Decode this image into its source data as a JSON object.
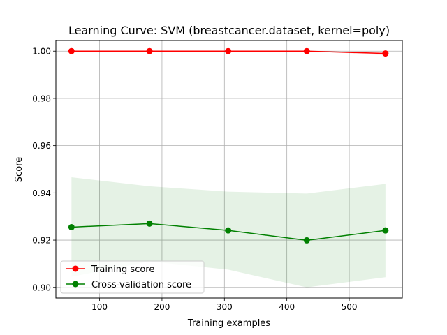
{
  "chart_data": {
    "type": "line",
    "title": "Learning Curve: SVM (breastcancer.dataset, kernel=poly)",
    "xlabel": "Training examples",
    "ylabel": "Score",
    "xlim": [
      30,
      585
    ],
    "ylim": [
      0.8955,
      1.0045
    ],
    "xticks": [
      100,
      200,
      300,
      400,
      500
    ],
    "yticks": [
      0.9,
      0.92,
      0.94,
      0.96,
      0.98,
      1.0
    ],
    "xtick_labels": [
      "100",
      "200",
      "300",
      "400",
      "500"
    ],
    "ytick_labels": [
      "0.90",
      "0.92",
      "0.94",
      "0.96",
      "0.98",
      "1.00"
    ],
    "grid": true,
    "legend_position": "bottom-left",
    "x": [
      55,
      180,
      306,
      432,
      558
    ],
    "series": [
      {
        "name": "Training score",
        "color": "#ff0000",
        "fill_color": "#ff0000",
        "values": [
          1.0,
          1.0,
          1.0,
          1.0,
          0.999
        ],
        "band_lower": [
          1.0,
          1.0,
          1.0,
          1.0,
          0.9983
        ],
        "band_upper": [
          1.0,
          1.0,
          1.0,
          1.0,
          0.9997
        ]
      },
      {
        "name": "Cross-validation score",
        "color": "#008000",
        "fill_color": "#008000",
        "values": [
          0.9255,
          0.927,
          0.9241,
          0.9199,
          0.9241
        ],
        "band_lower": [
          0.9045,
          0.911,
          0.9075,
          0.9,
          0.9043
        ],
        "band_upper": [
          0.9466,
          0.9428,
          0.9405,
          0.9397,
          0.9438
        ]
      }
    ]
  }
}
